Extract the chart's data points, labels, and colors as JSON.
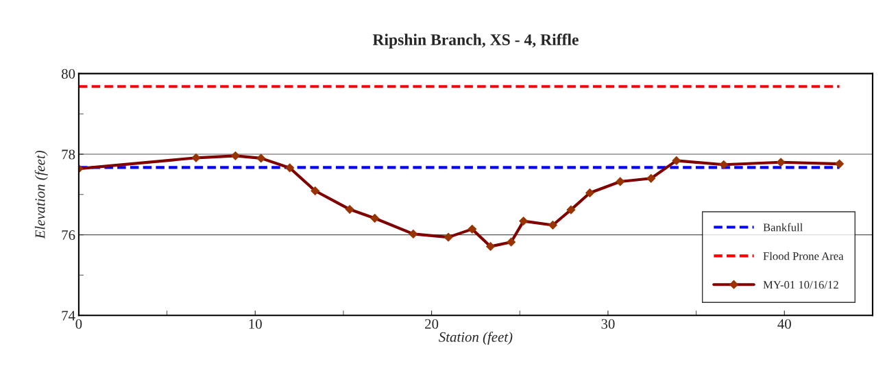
{
  "chart_data": {
    "type": "line",
    "title": "Ripshin Branch, XS - 4, Riffle",
    "xlabel": "Station (feet)",
    "ylabel": "Elevation (feet)",
    "xlim": [
      0,
      45
    ],
    "xticks": [
      0,
      10,
      20,
      30,
      40
    ],
    "ylim": [
      74,
      80
    ],
    "yticks": [
      74,
      76,
      78,
      80
    ],
    "grid": "y",
    "legend": "bottom right",
    "series": [
      {
        "name": "Bankfull",
        "color": "#0000ff",
        "line_style": "dashed",
        "marker": "none",
        "x": [
          0,
          43.12
        ],
        "values": [
          77.67,
          77.67
        ]
      },
      {
        "name": "Flood Prone Area",
        "color": "#ff0000",
        "line_style": "dashed",
        "marker": "none",
        "x": [
          0,
          43.12
        ],
        "values": [
          79.68,
          79.68
        ]
      },
      {
        "name": "MY-01 10/16/12",
        "color": "#800000",
        "line_style": "solid",
        "marker": "diamond",
        "x": [
          0,
          6.65,
          8.88,
          10.33,
          11.96,
          13.4,
          15.36,
          16.78,
          18.96,
          20.95,
          22.3,
          23.34,
          24.51,
          25.21,
          26.87,
          27.9,
          28.97,
          30.69,
          32.44,
          33.88,
          36.56,
          39.8,
          43.12
        ],
        "values": [
          77.64,
          77.91,
          77.96,
          77.9,
          77.66,
          77.09,
          76.63,
          76.41,
          76.02,
          75.94,
          76.14,
          75.71,
          75.82,
          76.34,
          76.24,
          76.62,
          77.04,
          77.32,
          77.4,
          77.84,
          77.74,
          77.8,
          77.76
        ]
      }
    ]
  }
}
